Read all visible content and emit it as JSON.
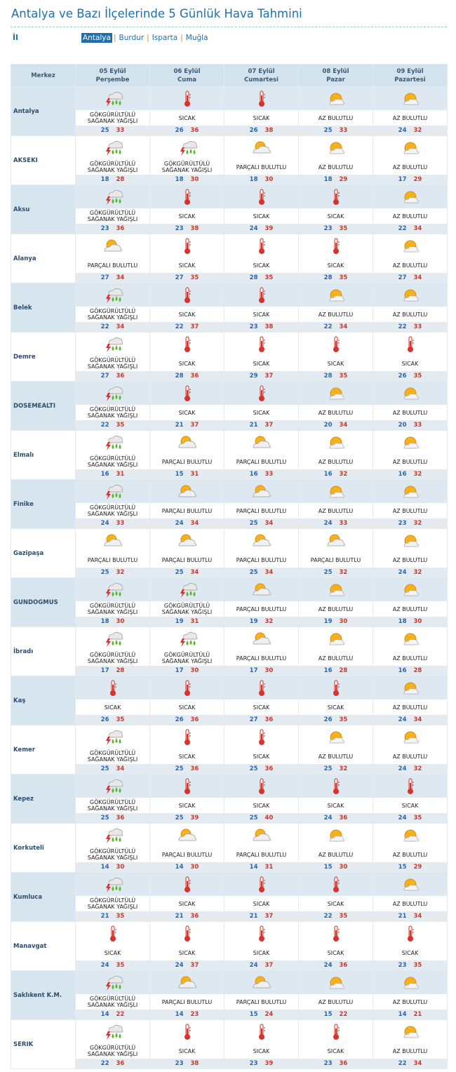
{
  "header": {
    "title": "Antalya ve Bazı İlçelerinde 5 Günlük Hava Tahmini",
    "il_label": "İl",
    "tabs": [
      "Antalya",
      "Burdur",
      "Isparta",
      "Muğla"
    ]
  },
  "table": {
    "corner": "Merkez",
    "days": [
      {
        "date": "05 Eylül",
        "weekday": "Perşembe"
      },
      {
        "date": "06 Eylül",
        "weekday": "Cuma"
      },
      {
        "date": "07 Eylül",
        "weekday": "Cumartesi"
      },
      {
        "date": "08 Eylül",
        "weekday": "Pazar"
      },
      {
        "date": "09 Eylül",
        "weekday": "Pazartesi"
      }
    ],
    "rows": [
      {
        "name": "Antalya",
        "cells": [
          {
            "condition": "GÖKGÜRÜLTÜLÜ SAĞANAK YAĞIŞLI",
            "low": 25,
            "high": 33
          },
          {
            "condition": "SICAK",
            "low": 26,
            "high": 36
          },
          {
            "condition": "SICAK",
            "low": 26,
            "high": 38
          },
          {
            "condition": "AZ BULUTLU",
            "low": 25,
            "high": 33
          },
          {
            "condition": "AZ BULUTLU",
            "low": 24,
            "high": 32
          }
        ]
      },
      {
        "name": "AKSEKI",
        "cells": [
          {
            "condition": "GÖKGÜRÜLTÜLÜ SAĞANAK YAĞIŞLI",
            "low": 18,
            "high": 28
          },
          {
            "condition": "GÖKGÜRÜLTÜLÜ SAĞANAK YAĞIŞLI",
            "low": 18,
            "high": 30
          },
          {
            "condition": "PARÇALI BULUTLU",
            "low": 18,
            "high": 30
          },
          {
            "condition": "AZ BULUTLU",
            "low": 18,
            "high": 29
          },
          {
            "condition": "AZ BULUTLU",
            "low": 17,
            "high": 29
          }
        ]
      },
      {
        "name": "Aksu",
        "cells": [
          {
            "condition": "GÖKGÜRÜLTÜLÜ SAĞANAK YAĞIŞLI",
            "low": 23,
            "high": 36
          },
          {
            "condition": "SICAK",
            "low": 23,
            "high": 38
          },
          {
            "condition": "SICAK",
            "low": 24,
            "high": 39
          },
          {
            "condition": "SICAK",
            "low": 23,
            "high": 35
          },
          {
            "condition": "AZ BULUTLU",
            "low": 22,
            "high": 34
          }
        ]
      },
      {
        "name": "Alanya",
        "cells": [
          {
            "condition": "PARÇALI BULUTLU",
            "low": 27,
            "high": 34
          },
          {
            "condition": "SICAK",
            "low": 27,
            "high": 35
          },
          {
            "condition": "SICAK",
            "low": 28,
            "high": 35
          },
          {
            "condition": "SICAK",
            "low": 28,
            "high": 35
          },
          {
            "condition": "AZ BULUTLU",
            "low": 27,
            "high": 34
          }
        ]
      },
      {
        "name": "Belek",
        "cells": [
          {
            "condition": "GÖKGÜRÜLTÜLÜ SAĞANAK YAĞIŞLI",
            "low": 22,
            "high": 34
          },
          {
            "condition": "SICAK",
            "low": 22,
            "high": 37
          },
          {
            "condition": "SICAK",
            "low": 23,
            "high": 38
          },
          {
            "condition": "AZ BULUTLU",
            "low": 22,
            "high": 34
          },
          {
            "condition": "AZ BULUTLU",
            "low": 22,
            "high": 33
          }
        ]
      },
      {
        "name": "Demre",
        "cells": [
          {
            "condition": "GÖKGÜRÜLTÜLÜ SAĞANAK YAĞIŞLI",
            "low": 27,
            "high": 36
          },
          {
            "condition": "SICAK",
            "low": 28,
            "high": 36
          },
          {
            "condition": "SICAK",
            "low": 29,
            "high": 37
          },
          {
            "condition": "SICAK",
            "low": 28,
            "high": 35
          },
          {
            "condition": "SICAK",
            "low": 26,
            "high": 35
          }
        ]
      },
      {
        "name": "DOSEMEALTI",
        "cells": [
          {
            "condition": "GÖKGÜRÜLTÜLÜ SAĞANAK YAĞIŞLI",
            "low": 22,
            "high": 35
          },
          {
            "condition": "SICAK",
            "low": 21,
            "high": 37
          },
          {
            "condition": "SICAK",
            "low": 21,
            "high": 37
          },
          {
            "condition": "AZ BULUTLU",
            "low": 20,
            "high": 34
          },
          {
            "condition": "AZ BULUTLU",
            "low": 20,
            "high": 33
          }
        ]
      },
      {
        "name": "Elmalı",
        "cells": [
          {
            "condition": "GÖKGÜRÜLTÜLÜ SAĞANAK YAĞIŞLI",
            "low": 16,
            "high": 31
          },
          {
            "condition": "PARÇALI BULUTLU",
            "low": 15,
            "high": 31
          },
          {
            "condition": "PARÇALI BULUTLU",
            "low": 16,
            "high": 33
          },
          {
            "condition": "AZ BULUTLU",
            "low": 16,
            "high": 32
          },
          {
            "condition": "AZ BULUTLU",
            "low": 16,
            "high": 32
          }
        ]
      },
      {
        "name": "Finike",
        "cells": [
          {
            "condition": "GÖKGÜRÜLTÜLÜ SAĞANAK YAĞIŞLI",
            "low": 24,
            "high": 33
          },
          {
            "condition": "PARÇALI BULUTLU",
            "low": 24,
            "high": 34
          },
          {
            "condition": "PARÇALI BULUTLU",
            "low": 25,
            "high": 34
          },
          {
            "condition": "AZ BULUTLU",
            "low": 24,
            "high": 33
          },
          {
            "condition": "AZ BULUTLU",
            "low": 23,
            "high": 32
          }
        ]
      },
      {
        "name": "Gazipaşa",
        "cells": [
          {
            "condition": "PARÇALI BULUTLU",
            "low": 25,
            "high": 32
          },
          {
            "condition": "PARÇALI BULUTLU",
            "low": 25,
            "high": 34
          },
          {
            "condition": "PARÇALI BULUTLU",
            "low": 25,
            "high": 34
          },
          {
            "condition": "PARÇALI BULUTLU",
            "low": 25,
            "high": 32
          },
          {
            "condition": "AZ BULUTLU",
            "low": 24,
            "high": 32
          }
        ]
      },
      {
        "name": "GUNDOGMUS",
        "cells": [
          {
            "condition": "GÖKGÜRÜLTÜLÜ SAĞANAK YAĞIŞLI",
            "low": 18,
            "high": 30
          },
          {
            "condition": "GÖKGÜRÜLTÜLÜ SAĞANAK YAĞIŞLI",
            "low": 19,
            "high": 31
          },
          {
            "condition": "PARÇALI BULUTLU",
            "low": 19,
            "high": 32
          },
          {
            "condition": "AZ BULUTLU",
            "low": 19,
            "high": 30
          },
          {
            "condition": "AZ BULUTLU",
            "low": 18,
            "high": 30
          }
        ]
      },
      {
        "name": "İbradı",
        "cells": [
          {
            "condition": "GÖKGÜRÜLTÜLÜ SAĞANAK YAĞIŞLI",
            "low": 17,
            "high": 28
          },
          {
            "condition": "GÖKGÜRÜLTÜLÜ SAĞANAK YAĞIŞLI",
            "low": 17,
            "high": 30
          },
          {
            "condition": "PARÇALI BULUTLU",
            "low": 17,
            "high": 30
          },
          {
            "condition": "AZ BULUTLU",
            "low": 16,
            "high": 28
          },
          {
            "condition": "AZ BULUTLU",
            "low": 16,
            "high": 28
          }
        ]
      },
      {
        "name": "Kaş",
        "cells": [
          {
            "condition": "SICAK",
            "low": 26,
            "high": 35
          },
          {
            "condition": "SICAK",
            "low": 26,
            "high": 36
          },
          {
            "condition": "SICAK",
            "low": 27,
            "high": 36
          },
          {
            "condition": "SICAK",
            "low": 26,
            "high": 35
          },
          {
            "condition": "AZ BULUTLU",
            "low": 24,
            "high": 34
          }
        ]
      },
      {
        "name": "Kemer",
        "cells": [
          {
            "condition": "GÖKGÜRÜLTÜLÜ SAĞANAK YAĞIŞLI",
            "low": 25,
            "high": 34
          },
          {
            "condition": "SICAK",
            "low": 25,
            "high": 36
          },
          {
            "condition": "SICAK",
            "low": 25,
            "high": 36
          },
          {
            "condition": "AZ BULUTLU",
            "low": 25,
            "high": 32
          },
          {
            "condition": "AZ BULUTLU",
            "low": 24,
            "high": 32
          }
        ]
      },
      {
        "name": "Kepez",
        "cells": [
          {
            "condition": "GÖKGÜRÜLTÜLÜ SAĞANAK YAĞIŞLI",
            "low": 25,
            "high": 36
          },
          {
            "condition": "SICAK",
            "low": 25,
            "high": 39
          },
          {
            "condition": "SICAK",
            "low": 25,
            "high": 40
          },
          {
            "condition": "SICAK",
            "low": 24,
            "high": 36
          },
          {
            "condition": "SICAK",
            "low": 24,
            "high": 35
          }
        ]
      },
      {
        "name": "Korkuteli",
        "cells": [
          {
            "condition": "GÖKGÜRÜLTÜLÜ SAĞANAK YAĞIŞLI",
            "low": 14,
            "high": 30
          },
          {
            "condition": "PARÇALI BULUTLU",
            "low": 14,
            "high": 30
          },
          {
            "condition": "PARÇALI BULUTLU",
            "low": 14,
            "high": 31
          },
          {
            "condition": "AZ BULUTLU",
            "low": 15,
            "high": 30
          },
          {
            "condition": "AZ BULUTLU",
            "low": 15,
            "high": 29
          }
        ]
      },
      {
        "name": "Kumluca",
        "cells": [
          {
            "condition": "GÖKGÜRÜLTÜLÜ SAĞANAK YAĞIŞLI",
            "low": 21,
            "high": 35
          },
          {
            "condition": "SICAK",
            "low": 21,
            "high": 36
          },
          {
            "condition": "SICAK",
            "low": 21,
            "high": 37
          },
          {
            "condition": "SICAK",
            "low": 22,
            "high": 35
          },
          {
            "condition": "AZ BULUTLU",
            "low": 21,
            "high": 34
          }
        ]
      },
      {
        "name": "Manavgat",
        "cells": [
          {
            "condition": "SICAK",
            "low": 24,
            "high": 35
          },
          {
            "condition": "SICAK",
            "low": 24,
            "high": 37
          },
          {
            "condition": "SICAK",
            "low": 24,
            "high": 37
          },
          {
            "condition": "SICAK",
            "low": 24,
            "high": 36
          },
          {
            "condition": "SICAK",
            "low": 23,
            "high": 35
          }
        ]
      },
      {
        "name": "Saklıkent K.M.",
        "cells": [
          {
            "condition": "GÖKGÜRÜLTÜLÜ SAĞANAK YAĞIŞLI",
            "low": 14,
            "high": 22
          },
          {
            "condition": "PARÇALI BULUTLU",
            "low": 14,
            "high": 23
          },
          {
            "condition": "PARÇALI BULUTLU",
            "low": 15,
            "high": 24
          },
          {
            "condition": "AZ BULUTLU",
            "low": 15,
            "high": 22
          },
          {
            "condition": "AZ BULUTLU",
            "low": 14,
            "high": 21
          }
        ]
      },
      {
        "name": "SERIK",
        "cells": [
          {
            "condition": "GÖKGÜRÜLTÜLÜ SAĞANAK YAĞIŞLI",
            "low": 22,
            "high": 36
          },
          {
            "condition": "SICAK",
            "low": 23,
            "high": 38
          },
          {
            "condition": "SICAK",
            "low": 23,
            "high": 39
          },
          {
            "condition": "SICAK",
            "low": 23,
            "high": 36
          },
          {
            "condition": "AZ BULUTLU",
            "low": 22,
            "high": 34
          }
        ]
      }
    ]
  }
}
